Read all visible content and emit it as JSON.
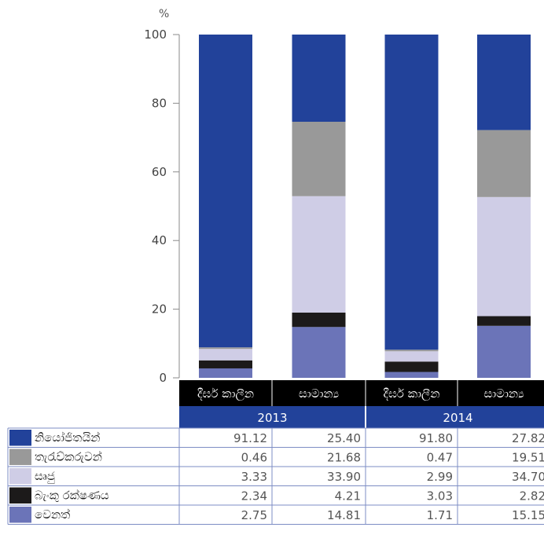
{
  "chart_data": {
    "type": "bar",
    "stacked": true,
    "ylabel": "%",
    "ylim": [
      0,
      100
    ],
    "yticks": [
      0,
      20,
      40,
      60,
      80,
      100
    ],
    "years": [
      "2013",
      "2014"
    ],
    "categories": [
      "දීර්ඝ කාලීන",
      "සාමාන්‍ය",
      "දීර්ඝ කාලීන",
      "සාමාන්‍ය"
    ],
    "series": [
      {
        "name": "වෙනත්",
        "color": "#6b74b8",
        "values": [
          2.75,
          14.81,
          1.71,
          15.15
        ],
        "labels": [
          "2.75",
          "14.81",
          "1.71",
          "15.15"
        ]
      },
      {
        "name": "බැංකු රක්ෂණය",
        "color": "#1c1a1a",
        "values": [
          2.34,
          4.21,
          3.03,
          2.82
        ],
        "labels": [
          "2.34",
          "4.21",
          "3.03",
          "2.82"
        ]
      },
      {
        "name": "සෘජු",
        "color": "#cfcde6",
        "values": [
          3.33,
          33.9,
          2.99,
          34.7
        ],
        "labels": [
          "3.33",
          "33.90",
          "2.99",
          "34.70"
        ]
      },
      {
        "name": "තැරැව්කරුවන්",
        "color": "#999999",
        "values": [
          0.46,
          21.68,
          0.47,
          19.51
        ],
        "labels": [
          "0.46",
          "21.68",
          "0.47",
          "19.51"
        ]
      },
      {
        "name": "නියෝජිතයින්",
        "color": "#22429a",
        "values": [
          91.12,
          25.4,
          91.8,
          27.82
        ],
        "labels": [
          "91.12",
          "25.40",
          "91.80",
          "27.82"
        ]
      }
    ],
    "table_order": [
      "නියෝජිතයින්",
      "තැරැව්කරුවන්",
      "සෘජු",
      "බැංකු රක්ෂණය",
      "වෙනත්"
    ]
  }
}
